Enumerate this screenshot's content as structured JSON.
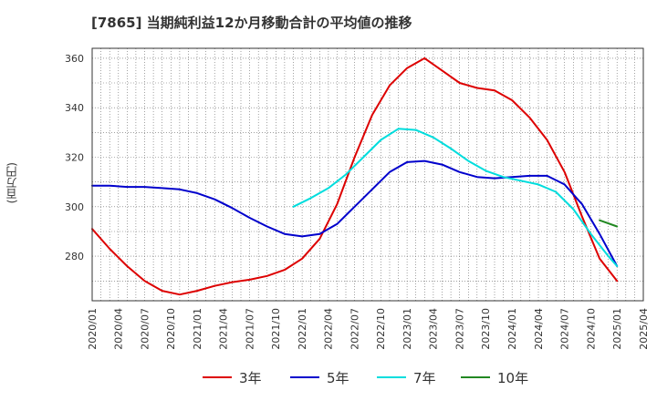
{
  "title": "[7865]  当期純利益12か月移動合計の平均値の推移",
  "chart_data": {
    "type": "line",
    "ylabel": "(百万円)",
    "ylim": [
      262,
      364
    ],
    "yticks": [
      280,
      300,
      320,
      340,
      360
    ],
    "xlim": [
      "2020-01",
      "2025-04"
    ],
    "xtick_labels": [
      "2020/01",
      "2020/04",
      "2020/07",
      "2020/10",
      "2021/01",
      "2021/04",
      "2021/07",
      "2021/10",
      "2022/01",
      "2022/04",
      "2022/07",
      "2022/10",
      "2023/01",
      "2023/04",
      "2023/07",
      "2023/10",
      "2024/01",
      "2024/04",
      "2024/07",
      "2024/10",
      "2025/01",
      "2025/04"
    ],
    "grid": true,
    "legend_position": "bottom",
    "series": [
      {
        "name": "3年",
        "color": "#dd0000",
        "x": [
          "2020-01",
          "2020-03",
          "2020-05",
          "2020-07",
          "2020-09",
          "2020-11",
          "2021-01",
          "2021-03",
          "2021-05",
          "2021-07",
          "2021-09",
          "2021-11",
          "2022-01",
          "2022-03",
          "2022-05",
          "2022-07",
          "2022-09",
          "2022-11",
          "2023-01",
          "2023-03",
          "2023-05",
          "2023-07",
          "2023-09",
          "2023-11",
          "2024-01",
          "2024-03",
          "2024-05",
          "2024-07",
          "2024-09",
          "2024-11",
          "2025-01"
        ],
        "y": [
          291,
          283,
          276,
          270,
          266,
          264.5,
          266,
          268,
          269.5,
          270.5,
          272,
          274.5,
          279,
          287,
          301,
          320,
          337,
          349,
          356,
          360,
          355,
          350,
          348,
          347,
          343,
          336,
          327,
          314,
          296,
          279,
          270
        ]
      },
      {
        "name": "5年",
        "color": "#0000cc",
        "x": [
          "2020-01",
          "2020-03",
          "2020-05",
          "2020-07",
          "2020-09",
          "2020-11",
          "2021-01",
          "2021-03",
          "2021-05",
          "2021-07",
          "2021-09",
          "2021-11",
          "2022-01",
          "2022-03",
          "2022-05",
          "2022-07",
          "2022-09",
          "2022-11",
          "2023-01",
          "2023-03",
          "2023-05",
          "2023-07",
          "2023-09",
          "2023-11",
          "2024-01",
          "2024-03",
          "2024-05",
          "2024-07",
          "2024-09",
          "2024-11",
          "2025-01"
        ],
        "y": [
          308.5,
          308.5,
          308,
          308,
          307.5,
          307,
          305.5,
          303,
          299.5,
          295.5,
          292,
          289,
          288,
          289,
          293,
          300,
          307,
          314,
          318,
          318.5,
          317,
          314,
          312,
          311.5,
          312,
          312.5,
          312.5,
          309,
          301,
          289,
          276
        ]
      },
      {
        "name": "7年",
        "color": "#00dddd",
        "x": [
          "2021-12",
          "2022-02",
          "2022-04",
          "2022-06",
          "2022-08",
          "2022-10",
          "2022-12",
          "2023-02",
          "2023-04",
          "2023-06",
          "2023-08",
          "2023-10",
          "2023-12",
          "2024-02",
          "2024-04",
          "2024-06",
          "2024-08",
          "2024-10",
          "2024-12",
          "2025-01"
        ],
        "y": [
          300,
          303.5,
          307.5,
          313,
          320,
          327,
          331.5,
          331,
          328,
          323.5,
          318.5,
          314.5,
          312,
          310.5,
          309,
          306,
          299,
          289,
          280,
          276
        ]
      },
      {
        "name": "10年",
        "color": "#228822",
        "x": [
          "2024-11",
          "2025-01"
        ],
        "y": [
          294.5,
          292
        ]
      }
    ]
  }
}
